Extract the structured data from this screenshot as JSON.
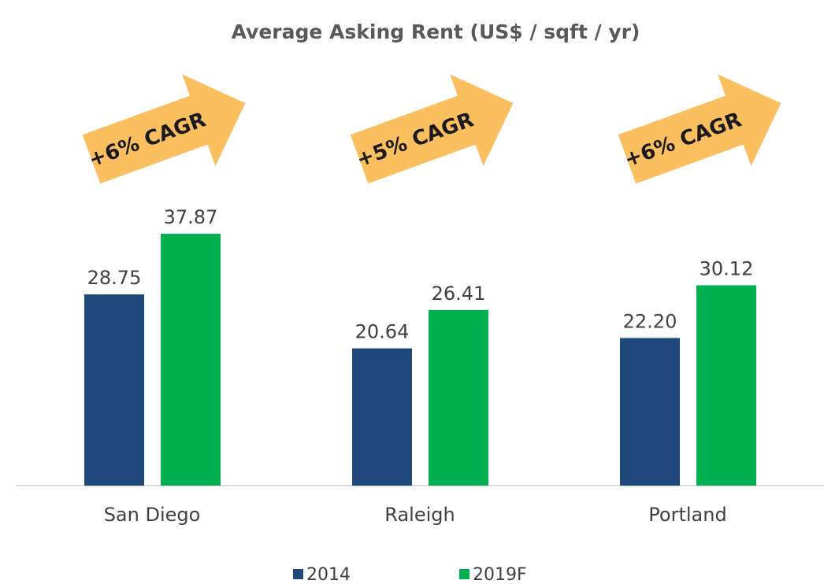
{
  "chart_data": {
    "type": "bar",
    "title": "Average Asking Rent (US$ / sqft / yr)",
    "categories": [
      "San Diego",
      "Raleigh",
      "Portland"
    ],
    "series": [
      {
        "name": "2014",
        "color": "#1f497d",
        "values": [
          28.75,
          20.64,
          22.2
        ],
        "value_labels": [
          "28.75",
          "20.64",
          "22.20"
        ]
      },
      {
        "name": "2019F",
        "color": "#00b050",
        "values": [
          37.87,
          26.41,
          30.12
        ],
        "value_labels": [
          "37.87",
          "26.41",
          "30.12"
        ]
      }
    ],
    "ylim": [
      0,
      40
    ],
    "annotations": [
      "+6% CAGR",
      "+5% CAGR",
      "+6% CAGR"
    ]
  }
}
